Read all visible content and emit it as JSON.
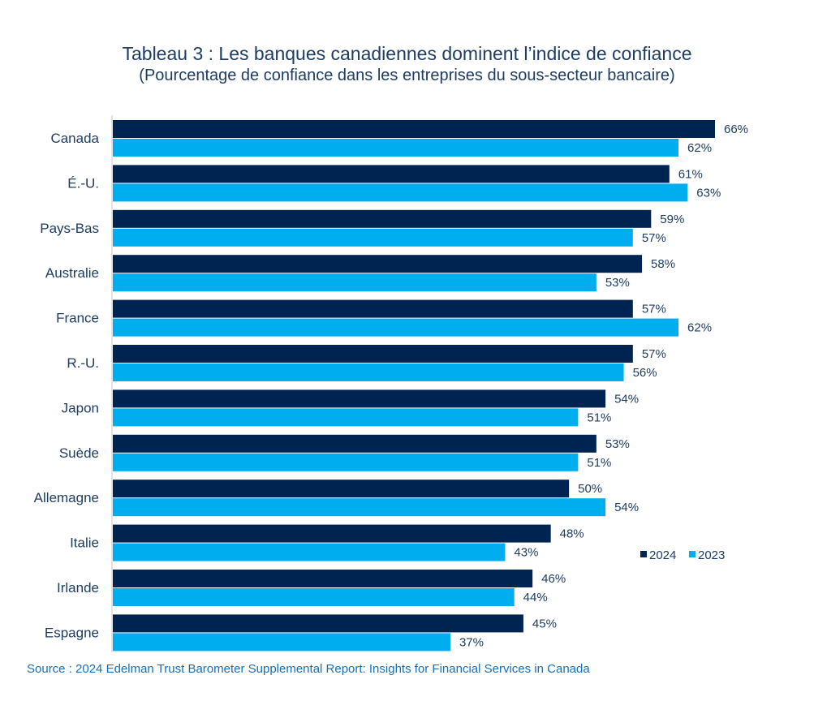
{
  "chart_data": {
    "type": "bar",
    "orientation": "horizontal",
    "title": "Tableau 3 : Les banques canadiennes dominent l’indice de confiance",
    "subtitle": "(Pourcentage de confiance dans les entreprises du sous-secteur bancaire)",
    "categories": [
      "Canada",
      "É.-U.",
      "Pays-Bas",
      "Australie",
      "France",
      "R.-U.",
      "Japon",
      "Suède",
      "Allemagne",
      "Italie",
      "Irlande",
      "Espagne"
    ],
    "series": [
      {
        "name": "2024",
        "color": "#002451",
        "values": [
          66,
          61,
          59,
          58,
          57,
          57,
          54,
          53,
          50,
          48,
          46,
          45
        ],
        "labels": [
          "66%",
          "61%",
          "59%",
          "58%",
          "57%",
          "57%",
          "54%",
          "53%",
          "50%",
          "48%",
          "46%",
          "45%"
        ]
      },
      {
        "name": "2023",
        "color": "#00adef",
        "values": [
          62,
          63,
          57,
          53,
          62,
          56,
          51,
          51,
          54,
          43,
          44,
          37
        ],
        "labels": [
          "62%",
          "63%",
          "57%",
          "53%",
          "62%",
          "56%",
          "51%",
          "51%",
          "54%",
          "43%",
          "44%",
          "37%"
        ]
      }
    ],
    "xlim": [
      0,
      66
    ],
    "grid": false,
    "legend_position": "bottom-right"
  },
  "source": "Source : 2024 Edelman Trust Barometer Supplemental Report: Insights for Financial Services in Canada"
}
